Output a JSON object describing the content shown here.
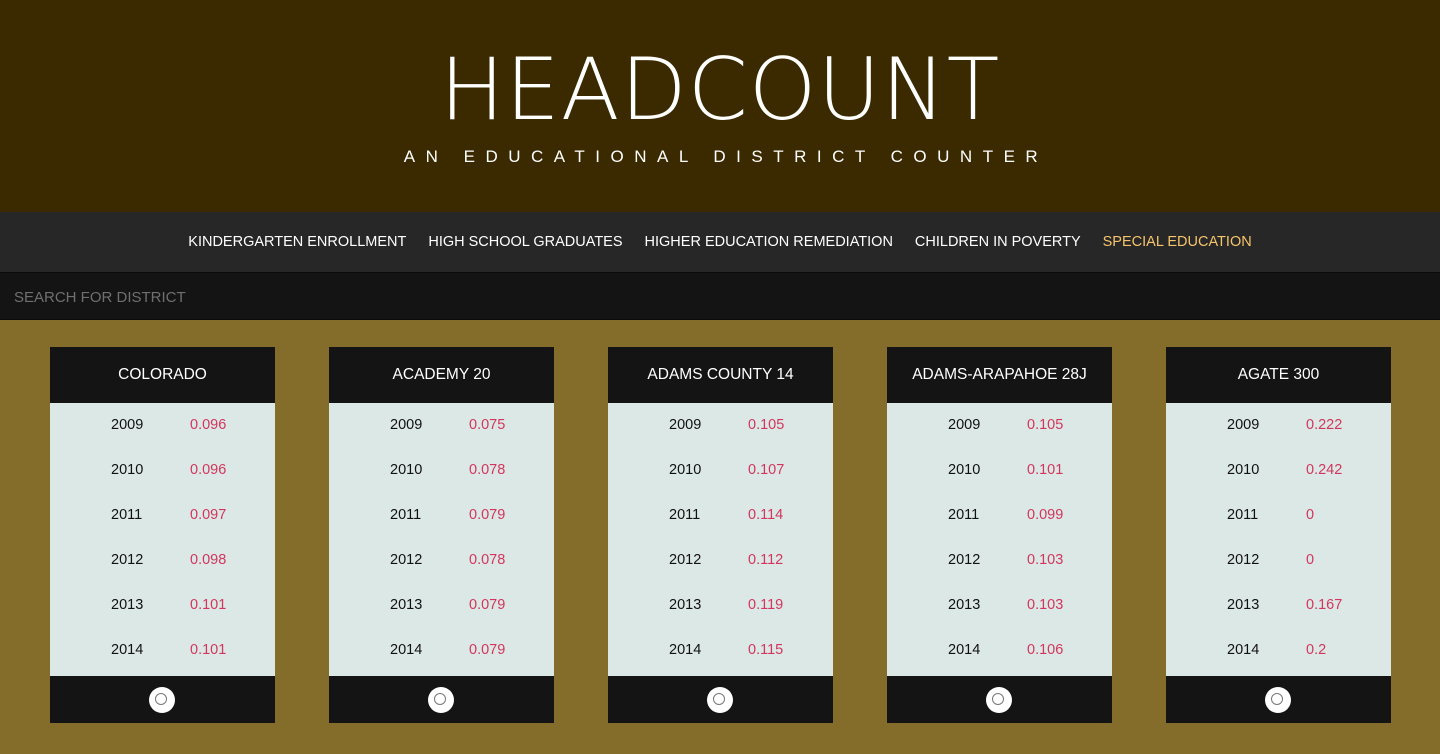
{
  "header": {
    "title": "HEADCOUNT",
    "subtitle": "AN EDUCATIONAL DISTRICT COUNTER"
  },
  "nav": {
    "items": [
      {
        "label": "KINDERGARTEN ENROLLMENT"
      },
      {
        "label": "HIGH SCHOOL GRADUATES"
      },
      {
        "label": "HIGHER EDUCATION REMEDIATION"
      },
      {
        "label": "CHILDREN IN POVERTY"
      },
      {
        "label": "SPECIAL EDUCATION"
      }
    ],
    "active_label": "SPECIAL EDUCATION",
    "active_color": "#f5c46b"
  },
  "search": {
    "placeholder": "SEARCH FOR DISTRICT",
    "value": ""
  },
  "districts": [
    {
      "name": "COLORADO",
      "rows": [
        {
          "year": "2009",
          "value": "0.096"
        },
        {
          "year": "2010",
          "value": "0.096"
        },
        {
          "year": "2011",
          "value": "0.097"
        },
        {
          "year": "2012",
          "value": "0.098"
        },
        {
          "year": "2013",
          "value": "0.101"
        },
        {
          "year": "2014",
          "value": "0.101"
        }
      ]
    },
    {
      "name": "ACADEMY 20",
      "rows": [
        {
          "year": "2009",
          "value": "0.075"
        },
        {
          "year": "2010",
          "value": "0.078"
        },
        {
          "year": "2011",
          "value": "0.079"
        },
        {
          "year": "2012",
          "value": "0.078"
        },
        {
          "year": "2013",
          "value": "0.079"
        },
        {
          "year": "2014",
          "value": "0.079"
        }
      ]
    },
    {
      "name": "ADAMS COUNTY 14",
      "rows": [
        {
          "year": "2009",
          "value": "0.105"
        },
        {
          "year": "2010",
          "value": "0.107"
        },
        {
          "year": "2011",
          "value": "0.114"
        },
        {
          "year": "2012",
          "value": "0.112"
        },
        {
          "year": "2013",
          "value": "0.119"
        },
        {
          "year": "2014",
          "value": "0.115"
        }
      ]
    },
    {
      "name": "ADAMS-ARAPAHOE 28J",
      "rows": [
        {
          "year": "2009",
          "value": "0.105"
        },
        {
          "year": "2010",
          "value": "0.101"
        },
        {
          "year": "2011",
          "value": "0.099"
        },
        {
          "year": "2012",
          "value": "0.103"
        },
        {
          "year": "2013",
          "value": "0.103"
        },
        {
          "year": "2014",
          "value": "0.106"
        }
      ]
    },
    {
      "name": "AGATE 300",
      "rows": [
        {
          "year": "2009",
          "value": "0.222"
        },
        {
          "year": "2010",
          "value": "0.242"
        },
        {
          "year": "2011",
          "value": "0"
        },
        {
          "year": "2012",
          "value": "0"
        },
        {
          "year": "2013",
          "value": "0.167"
        },
        {
          "year": "2014",
          "value": "0.2"
        }
      ]
    }
  ],
  "colors": {
    "header_bg": "#3b2a00",
    "page_bg": "#846d2a",
    "nav_bg": "#272727",
    "card_bg": "#dce8e5",
    "value_text": "#d2365f"
  }
}
